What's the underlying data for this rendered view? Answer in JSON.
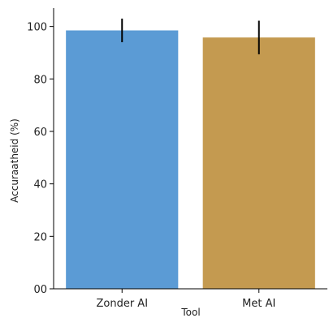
{
  "chart_data": {
    "type": "bar",
    "xlabel": "Tool",
    "ylabel": "Accuraatheid (%)",
    "ylim": [
      0,
      107
    ],
    "yticks": [
      0,
      20,
      40,
      60,
      80,
      100
    ],
    "yticklabels": [
      "00",
      "20",
      "40",
      "60",
      "80",
      "100"
    ],
    "categories": [
      "Zonder AI",
      "Met AI"
    ],
    "values": [
      98.5,
      95.8
    ],
    "error_low": [
      94.0,
      89.4
    ],
    "error_high": [
      103.0,
      102.2
    ],
    "bar_colors": [
      "#5b9bd5",
      "#c49a50"
    ],
    "grid": false,
    "legend": "none"
  }
}
